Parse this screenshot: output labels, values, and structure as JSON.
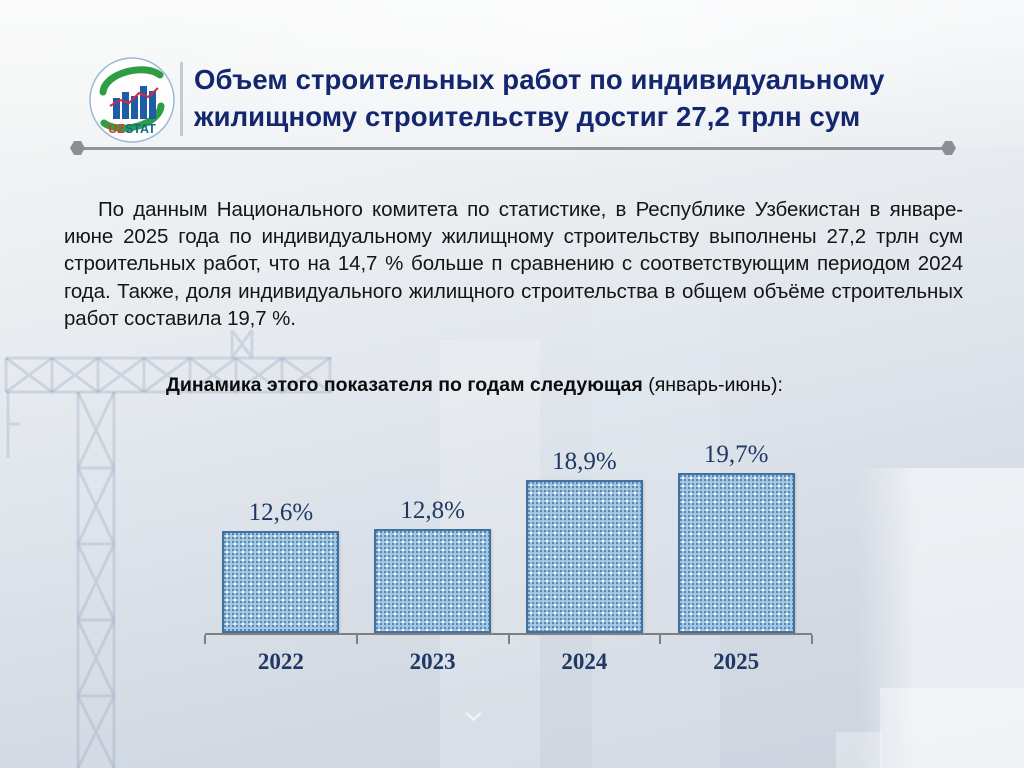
{
  "header": {
    "title_line1": "Объем строительных работ по индивидуальному",
    "title_line2": "жилищному строительству достиг 27,2 трлн сум",
    "logo": {
      "text_uz": "UZ",
      "text_stat": "STAT"
    }
  },
  "body": {
    "paragraph": "По данным Национального комитета по статистике, в Республике Узбекистан в январе-июне 2025 года по индивидуальному жилищному строительству выполнены 27,2 трлн сум строительных работ, что на 14,7 % больше п сравнению с соответствующим периодом 2024 года. Также, доля индивидуального жилищного строительства в общем объёме строительных работ  составила 19,7 %.",
    "subtitle_bold": "Динамика этого показателя по годам следующая",
    "subtitle_regular": " (январь-июнь):"
  },
  "chart_data": {
    "type": "bar",
    "title": "Динамика этого показателя по годам следующая (январь-июнь)",
    "categories": [
      "2022",
      "2023",
      "2024",
      "2025"
    ],
    "values": [
      12.6,
      12.8,
      18.9,
      19.7
    ],
    "labels": [
      "12,6%",
      "12,8%",
      "18,9%",
      "19,7%"
    ],
    "unit": "%",
    "ylim": [
      0,
      21
    ],
    "grid": false,
    "legend": false,
    "xlabel": "",
    "ylabel": "",
    "bar_fill": "#a6c9e8",
    "bar_border": "#41719c",
    "label_color": "#1f3864",
    "axis_color": "#7f7f7f"
  },
  "colors": {
    "title_navy": "#14266e",
    "body_text": "#151515",
    "divider_gray": "#8f9499",
    "logo_green": "#2f9d44",
    "logo_blue": "#1e5da5",
    "logo_red": "#d7263d"
  }
}
